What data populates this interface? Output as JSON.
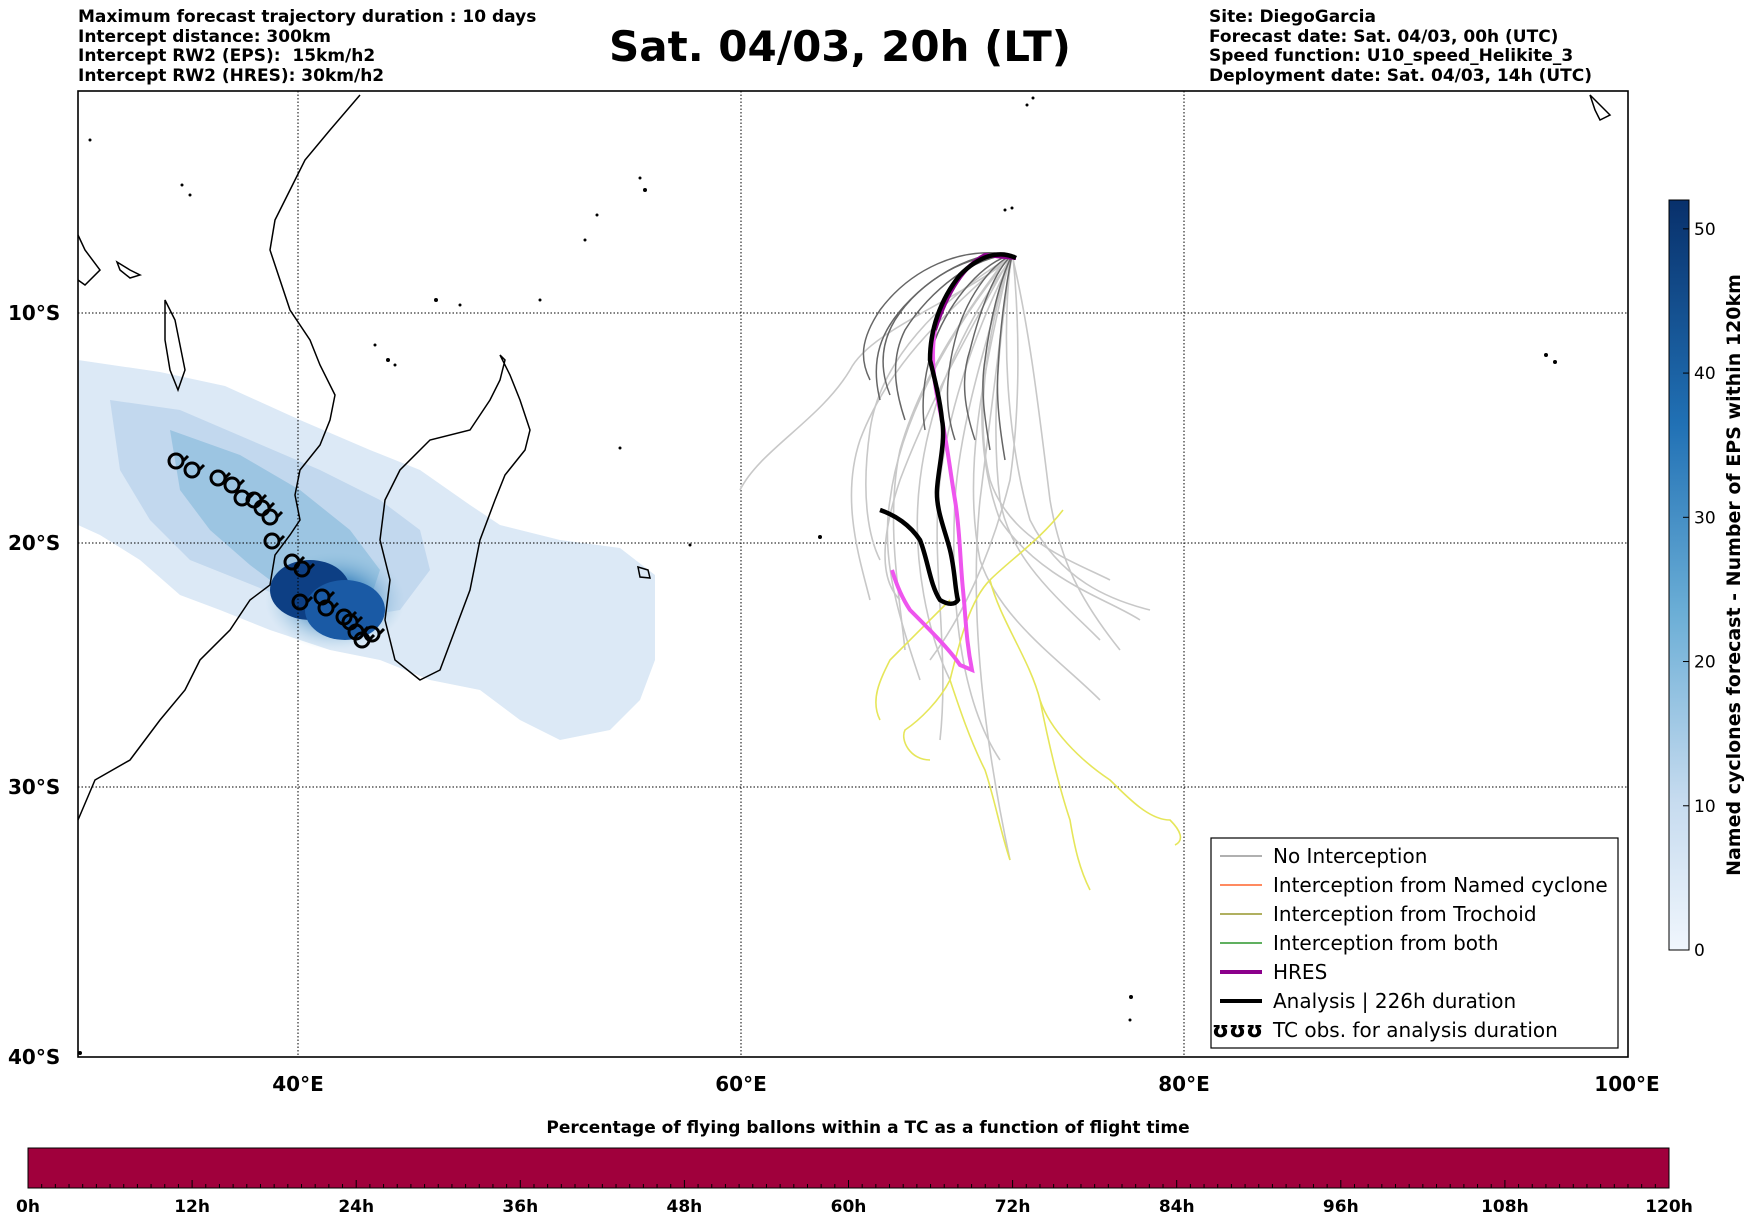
{
  "header": {
    "left_lines": [
      "Maximum forecast trajectory duration : 10 days",
      "Intercept distance: 300km",
      "Intercept RW2 (EPS):  15km/h2",
      "Intercept RW2 (HRES): 30km/h2"
    ],
    "title": "Sat. 04/03, 20h (LT)",
    "right_lines": [
      "Site: DiegoGarcia",
      "Forecast date: Sat. 04/03, 00h (UTC)",
      "Speed function: U10_speed_Helikite_3",
      "Deployment date: Sat. 04/03, 14h (UTC)"
    ]
  },
  "map": {
    "lon_labels": [
      "40°E",
      "60°E",
      "80°E",
      "100°E"
    ],
    "lat_labels": [
      "10°S",
      "20°S",
      "30°S",
      "40°S"
    ],
    "colors": {
      "no_interception": "#808080",
      "named_cyclone": "#ff4500",
      "trochoid": "#808000",
      "both": "#008000",
      "hres": "#8b008b",
      "analysis": "#000000",
      "eps_light": "#c8c8c8",
      "eps_dark": "#666666",
      "hres_pink": "#ee55ee",
      "yellow_track": "#eeee66"
    }
  },
  "legend": {
    "items": [
      {
        "label": "No Interception",
        "color": "#808080",
        "width": 1.2
      },
      {
        "label": "Interception from Named cyclone",
        "color": "#ff4500",
        "width": 1.2
      },
      {
        "label": "Interception from Trochoid",
        "color": "#808000",
        "width": 1.2
      },
      {
        "label": "Interception from both",
        "color": "#008000",
        "width": 1.2
      },
      {
        "label": "HRES",
        "color": "#8b008b",
        "width": 4
      },
      {
        "label": "Analysis | 226h duration",
        "color": "#000000",
        "width": 4
      }
    ],
    "tc_label": "TC obs. for analysis duration",
    "tc_symbol": "ʊʊʊ"
  },
  "colorbar": {
    "label": "Named cyclones forecast - Number of EPS within 120km",
    "ticks": [
      "0",
      "10",
      "20",
      "30",
      "40",
      "50"
    ],
    "range": [
      0,
      52
    ]
  },
  "bottom_bar": {
    "title": "Percentage of flying ballons within a TC as a function of flight time",
    "ticks": [
      "0h",
      "12h",
      "24h",
      "36h",
      "48h",
      "60h",
      "72h",
      "84h",
      "96h",
      "108h",
      "120h"
    ],
    "fill_color": "#a0003c"
  }
}
